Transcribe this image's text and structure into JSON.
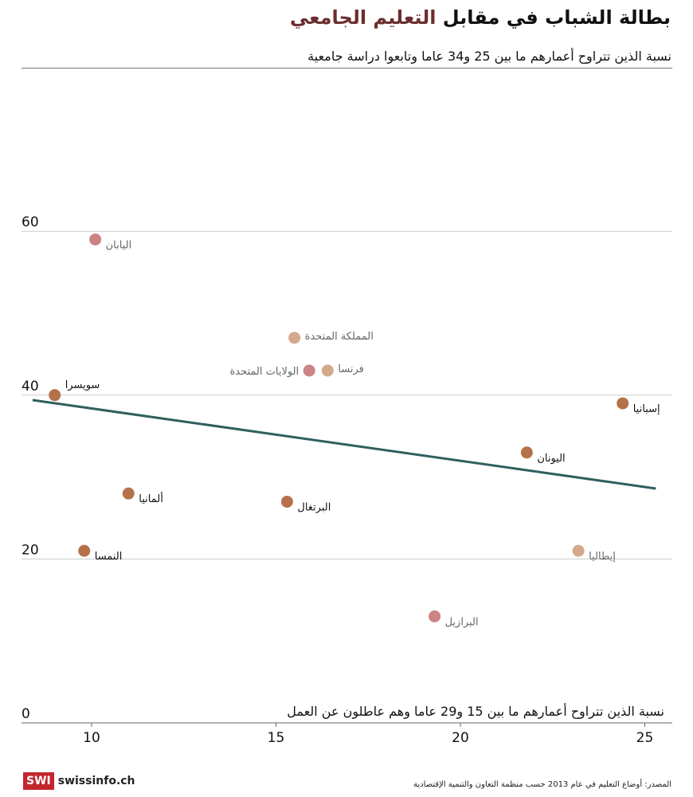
{
  "header": {
    "title_part1": "بطالة الشباب في مقابل ",
    "title_part2": "التعليم الجامعي",
    "subtitle": "نسبة الذين تتراوح أعمارهم ما بين 25 و34 عاما وتابعوا دراسة جامعية"
  },
  "footer": {
    "logo_box": "SWI",
    "logo_text": "swissinfo.ch",
    "source": "المصدر: أوضاع التعليم في عام 2013 حسب منظمة التعاون والتنمية الإقتصادية"
  },
  "colors": {
    "dark_dot": "#b5714a",
    "light_dot": "#d4a88a",
    "pink_dot": "#cc8385",
    "trend": "#2f5f5f",
    "title_accent": "#6b2e2e"
  },
  "chart_data": {
    "type": "scatter",
    "title": "بطالة الشباب في مقابل التعليم الجامعي",
    "ylabel": "نسبة الذين تتراوح أعمارهم ما بين 25 و34 عاما وتابعوا دراسة جامعية",
    "xlabel": "نسبة الذين تتراوح أعمارهم ما بين 15 و29 عاما وهم عاطلون عن العمل",
    "xlim": [
      8.3,
      25.7
    ],
    "ylim": [
      0,
      80
    ],
    "xticks": [
      "10",
      "15",
      "20",
      "25"
    ],
    "xtick_values": [
      10,
      15,
      20,
      25
    ],
    "yticks": [
      "0",
      "20",
      "40",
      "60"
    ],
    "ytick_values": [
      0,
      20,
      40,
      60
    ],
    "grid": "horizontal",
    "points": [
      {
        "label": "اليابان",
        "x": 10.1,
        "y": 59,
        "tone": "pink",
        "text": "grey"
      },
      {
        "label": "سويسرا",
        "x": 9.0,
        "y": 40,
        "tone": "dark",
        "text": "black",
        "label_pos": "above-right"
      },
      {
        "label": "المملكة المتحدة",
        "x": 15.5,
        "y": 47,
        "tone": "light",
        "text": "grey"
      },
      {
        "label": "الولايات المتحدة",
        "x": 15.9,
        "y": 43,
        "tone": "pink",
        "text": "grey",
        "label_pos": "left"
      },
      {
        "label": "فرنسا",
        "x": 16.4,
        "y": 43,
        "tone": "light",
        "text": "grey"
      },
      {
        "label": "إسبانيا",
        "x": 24.4,
        "y": 39,
        "tone": "dark",
        "text": "black"
      },
      {
        "label": "اليونان",
        "x": 21.8,
        "y": 33,
        "tone": "dark",
        "text": "black"
      },
      {
        "label": "ألمانيا",
        "x": 11.0,
        "y": 28,
        "tone": "dark",
        "text": "black"
      },
      {
        "label": "البرتغال",
        "x": 15.3,
        "y": 27,
        "tone": "dark",
        "text": "black"
      },
      {
        "label": "النمسا",
        "x": 9.8,
        "y": 21,
        "tone": "dark",
        "text": "black"
      },
      {
        "label": "إيطاليا",
        "x": 23.2,
        "y": 21,
        "tone": "light",
        "text": "grey"
      },
      {
        "label": "البرازيل",
        "x": 19.3,
        "y": 13,
        "tone": "pink",
        "text": "grey"
      }
    ],
    "trendline": {
      "x": [
        8.4,
        25.3
      ],
      "y": [
        39.4,
        28.6
      ]
    }
  }
}
